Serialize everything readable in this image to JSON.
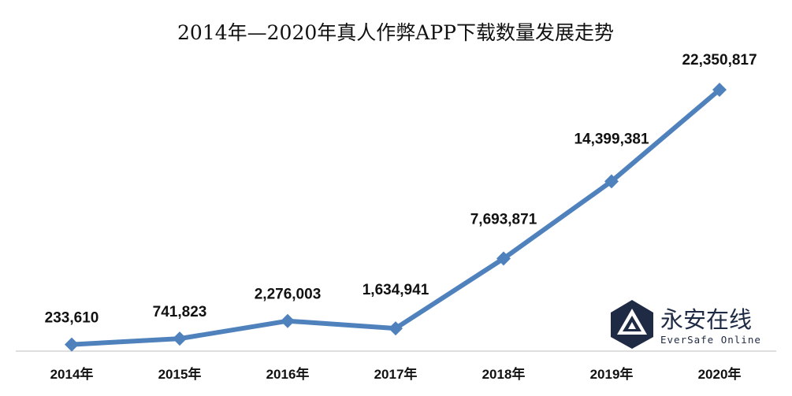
{
  "logo": {
    "name_cn": "永安在线",
    "name_en": "EverSafe Online",
    "color": "#1f2a44",
    "icon": "eversafe-triangle-logo-icon"
  },
  "chart_data": {
    "type": "line",
    "title": "2014年—2020年真人作弊APP下载数量发展走势",
    "xlabel": "",
    "ylabel": "",
    "categories": [
      "2014年",
      "2015年",
      "2016年",
      "2017年",
      "2018年",
      "2019年",
      "2020年"
    ],
    "values": [
      233610,
      741823,
      2276003,
      1634941,
      7693871,
      14399381,
      22350817
    ],
    "value_labels": [
      "233,610",
      "741,823",
      "2,276,003",
      "1,634,941",
      "7,693,871",
      "14,399,381",
      "22,350,817"
    ],
    "ylim": [
      0,
      22350817
    ],
    "grid": false,
    "legend": "none",
    "line_color": "#4f81bd",
    "axis_color": "#bfbfbf"
  }
}
